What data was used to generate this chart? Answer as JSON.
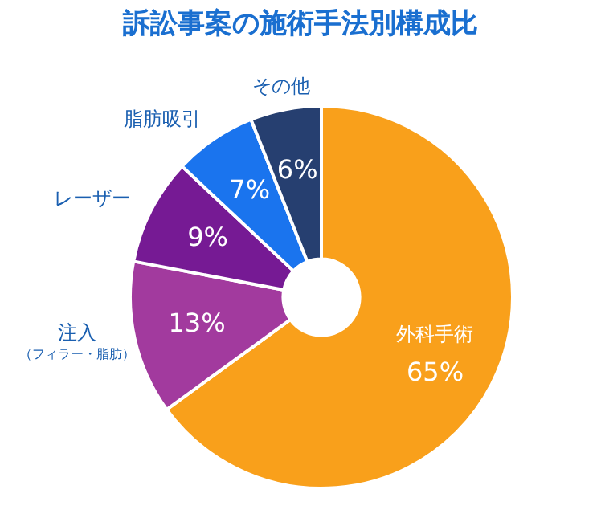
{
  "chart_data": {
    "type": "donut",
    "title": "訴訟事案の施術手法別構成比",
    "categories": [
      "外科手術",
      "注入（フィラー・脂肪）",
      "レーザー",
      "脂肪吸引",
      "その他"
    ],
    "values": [
      65,
      13,
      9,
      7,
      6
    ],
    "colors": [
      "#f9a01b",
      "#a23a9e",
      "#761a94",
      "#1a74ee",
      "#263f70"
    ],
    "value_labels": [
      "65%",
      "13%",
      "9%",
      "7%",
      "6%"
    ],
    "legend": false
  }
}
